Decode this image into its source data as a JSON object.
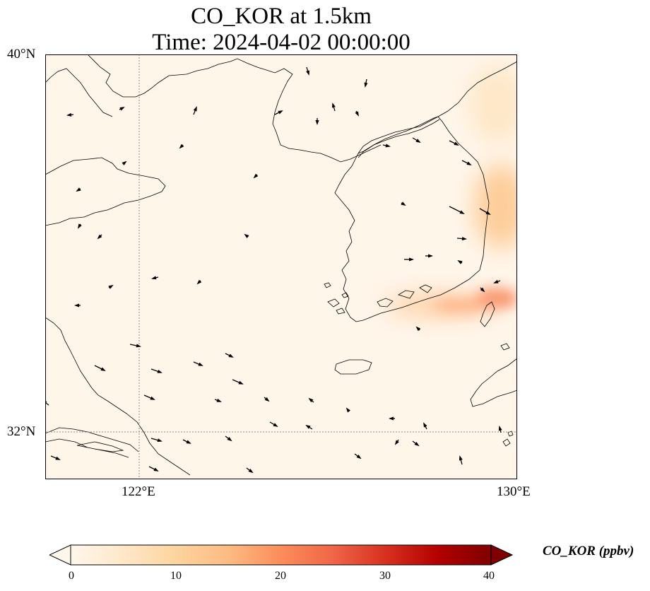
{
  "title": {
    "line1": "CO_KOR at 1.5km",
    "line2": "Time: 2024-04-02 00:00:00"
  },
  "map": {
    "projection": "PlateCarree",
    "extent_lon": [
      120.7,
      130.0
    ],
    "extent_lat": [
      30.6,
      40.0
    ],
    "gridlines": "dotted, gray",
    "lat_ticks": [
      {
        "value": 40,
        "label": "40°N"
      },
      {
        "value": 32,
        "label": "32°N"
      }
    ],
    "lon_ticks": [
      {
        "value": 122,
        "label": "122°E"
      },
      {
        "value": 130,
        "label": "130°E"
      }
    ],
    "field": {
      "variable": "CO_KOR",
      "units": "ppbv",
      "background_ppbv": 1,
      "plumes": [
        {
          "region": "southern Korean coast",
          "peak_ppbv": 20
        },
        {
          "region": "east of Korean peninsula",
          "peak_ppbv": 14
        },
        {
          "region": "northeast edge",
          "peak_ppbv": 6
        }
      ]
    },
    "wind_vectors": "sparse black arrows, winds mostly from the northwest over the sea and westerly over Korea"
  },
  "colorbar": {
    "colormap": "OrRd",
    "colors": [
      "#fff7ec",
      "#fee8c8",
      "#fdd49e",
      "#fdbb84",
      "#fc8d59",
      "#ef6548",
      "#d7301f",
      "#b30000",
      "#7f0000"
    ],
    "min": 0,
    "max": 40,
    "extend": "both",
    "ticks": [
      "0",
      "10",
      "20",
      "30",
      "40"
    ],
    "label": "CO_KOR (ppbv)"
  }
}
